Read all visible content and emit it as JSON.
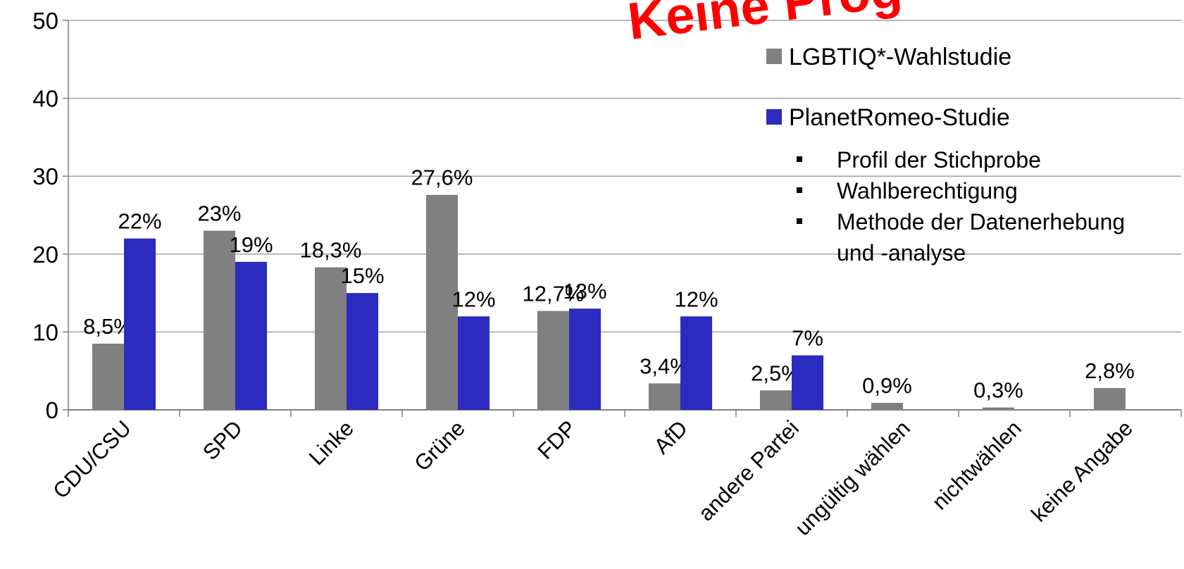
{
  "chart_data": {
    "type": "bar",
    "annotation": "Keine Prog",
    "categories": [
      "CDU/CSU",
      "SPD",
      "Linke",
      "Grüne",
      "FDP",
      "AfD",
      "andere Partei",
      "ungültig wählen",
      "nichtwählen",
      "keine Angabe"
    ],
    "series": [
      {
        "name": "LGBTIQ*-Wahlstudie",
        "color": "#808080",
        "values": [
          8.5,
          23,
          18.3,
          27.6,
          12.7,
          3.4,
          2.5,
          0.9,
          0.3,
          2.8
        ],
        "value_labels": [
          "8,5%",
          "23%",
          "18,3%",
          "27,6%",
          "12,7%",
          "3,4%",
          "2,5%",
          "0,9%",
          "0,3%",
          "2,8%"
        ]
      },
      {
        "name": "PlanetRomeo-Studie",
        "color": "#2b2bbf",
        "values": [
          22,
          19,
          15,
          12,
          13,
          12,
          7,
          null,
          null,
          null
        ],
        "value_labels": [
          "22%",
          "19%",
          "15%",
          "12%",
          "13%",
          "12%",
          "7%",
          null,
          null,
          null
        ]
      }
    ],
    "ylim": [
      0,
      50
    ],
    "yticks": [
      0,
      10,
      20,
      30,
      40,
      50
    ],
    "grid": true,
    "notes": [
      "Profil der Stichprobe",
      "Wahlberechtigung",
      "Methode der Datenerhebung und -analyse"
    ]
  }
}
